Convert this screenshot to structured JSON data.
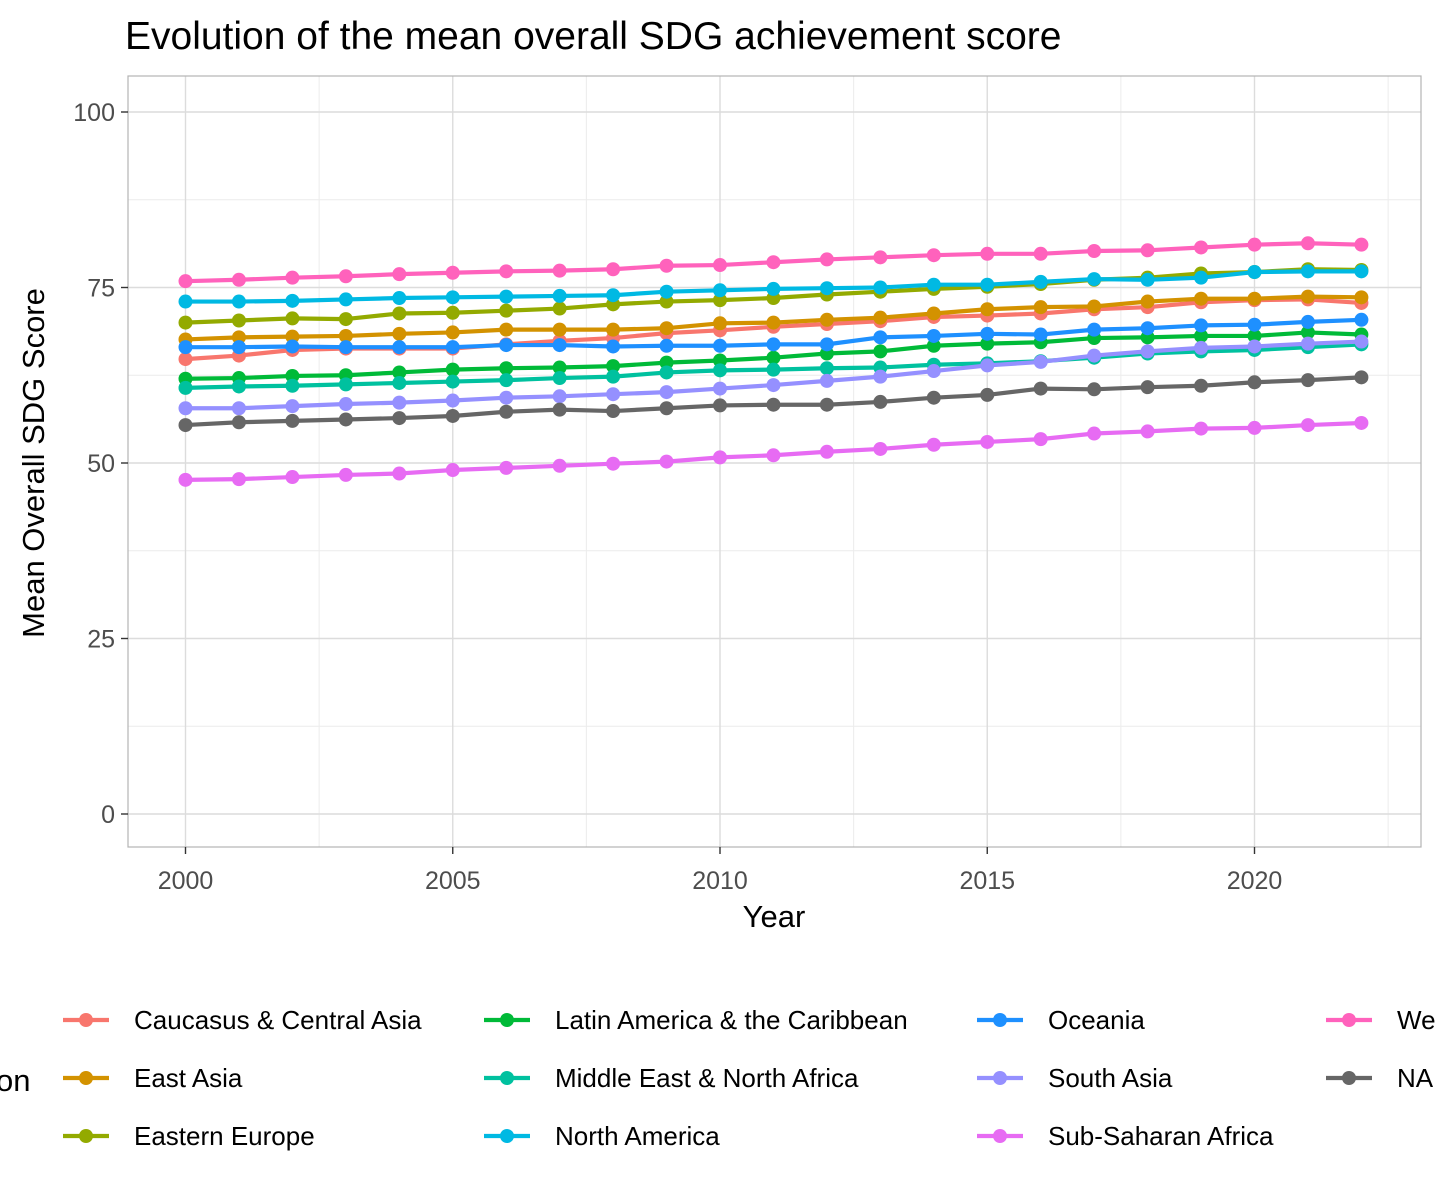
{
  "chart_data": {
    "type": "line",
    "title": "Evolution of the mean overall SDG achievement score",
    "xlabel": "Year",
    "ylabel": "Mean Overall SDG Score",
    "legend_title": "on",
    "xlim": [
      1999,
      2023
    ],
    "ylim": [
      -5,
      105
    ],
    "x_ticks": [
      "2000",
      "2005",
      "2010",
      "2015",
      "2020"
    ],
    "y_ticks": [
      "0",
      "25",
      "50",
      "75",
      "100"
    ],
    "grid": true,
    "legend_position": "bottom",
    "x": [
      2000,
      2001,
      2002,
      2003,
      2004,
      2005,
      2006,
      2007,
      2008,
      2009,
      2010,
      2011,
      2012,
      2013,
      2014,
      2015,
      2016,
      2017,
      2018,
      2019,
      2020,
      2021,
      2022
    ],
    "series": [
      {
        "name": "Caucasus & Central Asia",
        "color": "#F8766D",
        "values": [
          64.8,
          65.3,
          66.1,
          66.3,
          66.3,
          66.3,
          66.9,
          67.4,
          67.8,
          68.5,
          68.9,
          69.4,
          69.8,
          70.2,
          70.8,
          71.0,
          71.3,
          71.9,
          72.2,
          72.9,
          73.2,
          73.3,
          72.8
        ]
      },
      {
        "name": "East Asia",
        "color": "#D39200",
        "values": [
          67.6,
          67.9,
          68.0,
          68.1,
          68.4,
          68.6,
          69.0,
          69.0,
          69.0,
          69.2,
          69.9,
          70.0,
          70.4,
          70.7,
          71.3,
          71.9,
          72.2,
          72.3,
          73.0,
          73.4,
          73.4,
          73.7,
          73.6
        ]
      },
      {
        "name": "Eastern Europe",
        "color": "#93AA00",
        "values": [
          70.0,
          70.3,
          70.6,
          70.5,
          71.3,
          71.4,
          71.7,
          72.0,
          72.6,
          73.0,
          73.2,
          73.5,
          74.0,
          74.4,
          74.8,
          75.1,
          75.5,
          76.1,
          76.4,
          77.0,
          77.2,
          77.6,
          77.5
        ]
      },
      {
        "name": "Latin America & the Caribbean",
        "color": "#00BA38",
        "values": [
          62.0,
          62.1,
          62.4,
          62.5,
          62.9,
          63.3,
          63.5,
          63.6,
          63.8,
          64.3,
          64.6,
          65.0,
          65.6,
          65.9,
          66.7,
          67.0,
          67.2,
          67.8,
          67.9,
          68.1,
          68.1,
          68.6,
          68.3
        ]
      },
      {
        "name": "Middle East & North Africa",
        "color": "#00C19F",
        "values": [
          60.7,
          60.9,
          61.0,
          61.2,
          61.4,
          61.6,
          61.8,
          62.1,
          62.3,
          62.9,
          63.2,
          63.3,
          63.5,
          63.6,
          64.0,
          64.2,
          64.5,
          65.0,
          65.6,
          65.9,
          66.1,
          66.5,
          66.9
        ]
      },
      {
        "name": "North America",
        "color": "#00B9E3",
        "values": [
          73.0,
          73.0,
          73.1,
          73.3,
          73.5,
          73.6,
          73.7,
          73.8,
          73.9,
          74.4,
          74.6,
          74.8,
          74.9,
          75.0,
          75.4,
          75.4,
          75.8,
          76.2,
          76.1,
          76.4,
          77.2,
          77.3,
          77.3
        ]
      },
      {
        "name": "Oceania",
        "color": "#1E90FF",
        "values": [
          66.5,
          66.5,
          66.6,
          66.5,
          66.5,
          66.5,
          66.8,
          66.8,
          66.6,
          66.7,
          66.7,
          66.9,
          66.9,
          67.9,
          68.1,
          68.4,
          68.3,
          69.0,
          69.2,
          69.6,
          69.7,
          70.1,
          70.4
        ]
      },
      {
        "name": "South Asia",
        "color": "#9590FF",
        "values": [
          57.8,
          57.8,
          58.1,
          58.4,
          58.6,
          58.9,
          59.3,
          59.5,
          59.8,
          60.1,
          60.6,
          61.1,
          61.7,
          62.3,
          63.1,
          63.9,
          64.4,
          65.3,
          65.9,
          66.4,
          66.6,
          67.0,
          67.3
        ]
      },
      {
        "name": "Sub-Saharan Africa",
        "color": "#E76BF3",
        "values": [
          47.6,
          47.7,
          48.0,
          48.3,
          48.5,
          49.0,
          49.3,
          49.6,
          49.9,
          50.2,
          50.8,
          51.1,
          51.6,
          52.0,
          52.6,
          53.0,
          53.4,
          54.2,
          54.5,
          54.9,
          55.0,
          55.4,
          55.7
        ]
      },
      {
        "name": "We",
        "color": "#FF62BC",
        "values": [
          75.9,
          76.1,
          76.4,
          76.6,
          76.9,
          77.1,
          77.3,
          77.4,
          77.6,
          78.1,
          78.2,
          78.6,
          79.0,
          79.3,
          79.6,
          79.8,
          79.8,
          80.2,
          80.3,
          80.7,
          81.1,
          81.3,
          81.1
        ]
      },
      {
        "name": "NA",
        "color": "#666666",
        "values": [
          55.4,
          55.8,
          56.0,
          56.2,
          56.4,
          56.7,
          57.3,
          57.6,
          57.4,
          57.8,
          58.2,
          58.3,
          58.3,
          58.7,
          59.3,
          59.7,
          60.6,
          60.5,
          60.8,
          61.0,
          61.5,
          61.8,
          62.2
        ]
      }
    ]
  }
}
